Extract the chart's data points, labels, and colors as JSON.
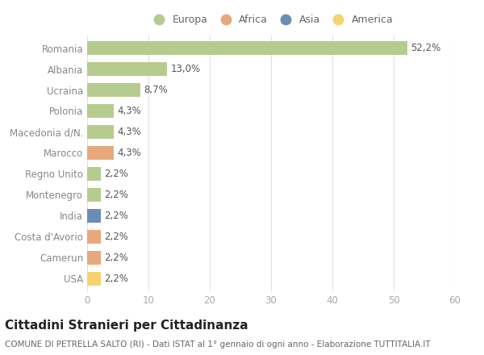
{
  "countries": [
    "Romania",
    "Albania",
    "Ucraina",
    "Polonia",
    "Macedonia d/N.",
    "Marocco",
    "Regno Unito",
    "Montenegro",
    "India",
    "Costa d'Avorio",
    "Camerun",
    "USA"
  ],
  "values": [
    52.2,
    13.0,
    8.7,
    4.3,
    4.3,
    4.3,
    2.2,
    2.2,
    2.2,
    2.2,
    2.2,
    2.2
  ],
  "labels": [
    "52,2%",
    "13,0%",
    "8,7%",
    "4,3%",
    "4,3%",
    "4,3%",
    "2,2%",
    "2,2%",
    "2,2%",
    "2,2%",
    "2,2%",
    "2,2%"
  ],
  "colors": [
    "#b5cc8e",
    "#b5cc8e",
    "#b5cc8e",
    "#b5cc8e",
    "#b5cc8e",
    "#e8a87c",
    "#b5cc8e",
    "#b5cc8e",
    "#6b8db5",
    "#e8a87c",
    "#e8a87c",
    "#f5d36e"
  ],
  "legend_labels": [
    "Europa",
    "Africa",
    "Asia",
    "America"
  ],
  "legend_colors": [
    "#b5cc8e",
    "#e8a87c",
    "#6b8db5",
    "#f5d36e"
  ],
  "title": "Cittadini Stranieri per Cittadinanza",
  "subtitle": "COMUNE DI PETRELLA SALTO (RI) - Dati ISTAT al 1° gennaio di ogni anno - Elaborazione TUTTITALIA.IT",
  "xlim": [
    0,
    60
  ],
  "xticks": [
    0,
    10,
    20,
    30,
    40,
    50,
    60
  ],
  "bg_color": "#ffffff",
  "grid_color": "#e0e0e0",
  "bar_height": 0.65,
  "label_fontsize": 8.5,
  "title_fontsize": 11,
  "subtitle_fontsize": 7.5,
  "tick_fontsize": 8.5,
  "ytick_color": "#888888",
  "xtick_color": "#aaaaaa",
  "label_color": "#555555"
}
